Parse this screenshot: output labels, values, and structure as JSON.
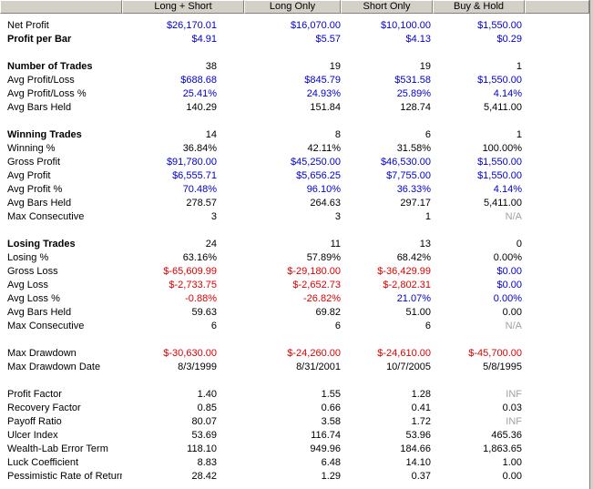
{
  "columns": {
    "label": "",
    "long_short": "Long + Short",
    "long_only": "Long Only",
    "short_only": "Short Only",
    "buy_hold": "Buy & Hold"
  },
  "colors": {
    "positive": "#0000cc",
    "negative": "#dd0000",
    "neutral": "#000000",
    "na": "#a0a0a0",
    "header_bg": "#d4d0c8"
  },
  "rows": [
    {
      "label": "Net Profit",
      "bold": false,
      "values": [
        "$26,170.01",
        "$16,070.00",
        "$10,100.00",
        "$1,550.00"
      ],
      "colors": [
        "blue",
        "blue",
        "blue",
        "blue"
      ]
    },
    {
      "label": "Profit per Bar",
      "bold": true,
      "values": [
        "$4.91",
        "$5.57",
        "$4.13",
        "$0.29"
      ],
      "colors": [
        "blue",
        "blue",
        "blue",
        "blue"
      ]
    },
    {
      "blank": true
    },
    {
      "label": "Number of Trades",
      "bold": true,
      "values": [
        "38",
        "19",
        "19",
        "1"
      ],
      "colors": [
        "black",
        "black",
        "black",
        "black"
      ]
    },
    {
      "label": "Avg Profit/Loss",
      "bold": false,
      "values": [
        "$688.68",
        "$845.79",
        "$531.58",
        "$1,550.00"
      ],
      "colors": [
        "blue",
        "blue",
        "blue",
        "blue"
      ]
    },
    {
      "label": "Avg Profit/Loss %",
      "bold": false,
      "values": [
        "25.41%",
        "24.93%",
        "25.89%",
        "4.14%"
      ],
      "colors": [
        "blue",
        "blue",
        "blue",
        "blue"
      ]
    },
    {
      "label": "Avg Bars Held",
      "bold": false,
      "values": [
        "140.29",
        "151.84",
        "128.74",
        "5,411.00"
      ],
      "colors": [
        "black",
        "black",
        "black",
        "black"
      ]
    },
    {
      "blank": true
    },
    {
      "label": "Winning Trades",
      "bold": true,
      "values": [
        "14",
        "8",
        "6",
        "1"
      ],
      "colors": [
        "black",
        "black",
        "black",
        "black"
      ]
    },
    {
      "label": "Winning %",
      "bold": false,
      "values": [
        "36.84%",
        "42.11%",
        "31.58%",
        "100.00%"
      ],
      "colors": [
        "black",
        "black",
        "black",
        "black"
      ]
    },
    {
      "label": "Gross Profit",
      "bold": false,
      "values": [
        "$91,780.00",
        "$45,250.00",
        "$46,530.00",
        "$1,550.00"
      ],
      "colors": [
        "blue",
        "blue",
        "blue",
        "blue"
      ]
    },
    {
      "label": "Avg Profit",
      "bold": false,
      "values": [
        "$6,555.71",
        "$5,656.25",
        "$7,755.00",
        "$1,550.00"
      ],
      "colors": [
        "blue",
        "blue",
        "blue",
        "blue"
      ]
    },
    {
      "label": "Avg Profit %",
      "bold": false,
      "values": [
        "70.48%",
        "96.10%",
        "36.33%",
        "4.14%"
      ],
      "colors": [
        "blue",
        "blue",
        "blue",
        "blue"
      ]
    },
    {
      "label": "Avg Bars Held",
      "bold": false,
      "values": [
        "278.57",
        "264.63",
        "297.17",
        "5,411.00"
      ],
      "colors": [
        "black",
        "black",
        "black",
        "black"
      ]
    },
    {
      "label": "Max Consecutive",
      "bold": false,
      "values": [
        "3",
        "3",
        "1",
        "N/A"
      ],
      "colors": [
        "black",
        "black",
        "black",
        "gray"
      ]
    },
    {
      "blank": true
    },
    {
      "label": "Losing Trades",
      "bold": true,
      "values": [
        "24",
        "11",
        "13",
        "0"
      ],
      "colors": [
        "black",
        "black",
        "black",
        "black"
      ]
    },
    {
      "label": "Losing %",
      "bold": false,
      "values": [
        "63.16%",
        "57.89%",
        "68.42%",
        "0.00%"
      ],
      "colors": [
        "black",
        "black",
        "black",
        "black"
      ]
    },
    {
      "label": "Gross Loss",
      "bold": false,
      "values": [
        "$-65,609.99",
        "$-29,180.00",
        "$-36,429.99",
        "$0.00"
      ],
      "colors": [
        "red",
        "red",
        "red",
        "blue"
      ]
    },
    {
      "label": "Avg Loss",
      "bold": false,
      "values": [
        "$-2,733.75",
        "$-2,652.73",
        "$-2,802.31",
        "$0.00"
      ],
      "colors": [
        "red",
        "red",
        "red",
        "blue"
      ]
    },
    {
      "label": "Avg Loss %",
      "bold": false,
      "values": [
        "-0.88%",
        "-26.82%",
        "21.07%",
        "0.00%"
      ],
      "colors": [
        "red",
        "red",
        "blue",
        "blue"
      ]
    },
    {
      "label": "Avg Bars Held",
      "bold": false,
      "values": [
        "59.63",
        "69.82",
        "51.00",
        "0.00"
      ],
      "colors": [
        "black",
        "black",
        "black",
        "black"
      ]
    },
    {
      "label": "Max Consecutive",
      "bold": false,
      "values": [
        "6",
        "6",
        "6",
        "N/A"
      ],
      "colors": [
        "black",
        "black",
        "black",
        "gray"
      ]
    },
    {
      "blank": true
    },
    {
      "label": "Max Drawdown",
      "bold": false,
      "values": [
        "$-30,630.00",
        "$-24,260.00",
        "$-24,610.00",
        "$-45,700.00"
      ],
      "colors": [
        "red",
        "red",
        "red",
        "red"
      ]
    },
    {
      "label": "Max Drawdown Date",
      "bold": false,
      "values": [
        "8/3/1999",
        "8/31/2001",
        "10/7/2005",
        "5/8/1995"
      ],
      "colors": [
        "black",
        "black",
        "black",
        "black"
      ]
    },
    {
      "blank": true
    },
    {
      "label": "Profit Factor",
      "bold": false,
      "values": [
        "1.40",
        "1.55",
        "1.28",
        "INF"
      ],
      "colors": [
        "black",
        "black",
        "black",
        "gray"
      ]
    },
    {
      "label": "Recovery Factor",
      "bold": false,
      "values": [
        "0.85",
        "0.66",
        "0.41",
        "0.03"
      ],
      "colors": [
        "black",
        "black",
        "black",
        "black"
      ]
    },
    {
      "label": "Payoff Ratio",
      "bold": false,
      "values": [
        "80.07",
        "3.58",
        "1.72",
        "INF"
      ],
      "colors": [
        "black",
        "black",
        "black",
        "gray"
      ]
    },
    {
      "label": "Ulcer Index",
      "bold": false,
      "values": [
        "53.69",
        "116.74",
        "53.96",
        "465.36"
      ],
      "colors": [
        "black",
        "black",
        "black",
        "black"
      ]
    },
    {
      "label": "Wealth-Lab Error Term",
      "bold": false,
      "values": [
        "118.10",
        "949.96",
        "184.66",
        "1,863.65"
      ],
      "colors": [
        "black",
        "black",
        "black",
        "black"
      ]
    },
    {
      "label": "Luck Coefficient",
      "bold": false,
      "values": [
        "8.83",
        "6.48",
        "14.10",
        "1.00"
      ],
      "colors": [
        "black",
        "black",
        "black",
        "black"
      ]
    },
    {
      "label": "Pessimistic Rate of Return",
      "bold": false,
      "values": [
        "28.42",
        "1.29",
        "0.37",
        "0.00"
      ],
      "colors": [
        "black",
        "black",
        "black",
        "black"
      ]
    }
  ]
}
